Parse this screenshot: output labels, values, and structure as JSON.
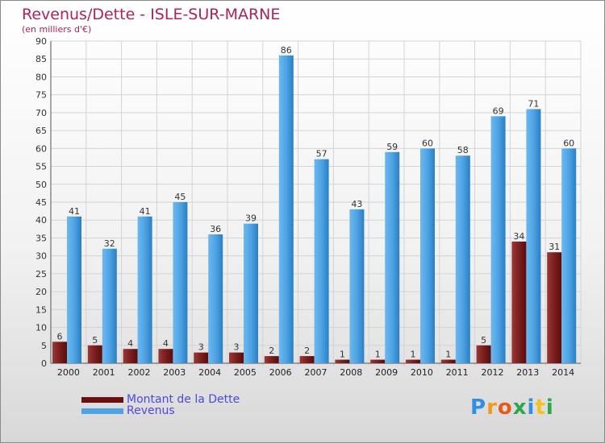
{
  "header": {
    "title": "Revenus/Dette - ISLE-SUR-MARNE",
    "subtitle": "(en milliers d'€)"
  },
  "chart_data": {
    "type": "bar",
    "categories": [
      "2000",
      "2001",
      "2002",
      "2003",
      "2004",
      "2005",
      "2006",
      "2007",
      "2008",
      "2009",
      "2010",
      "2011",
      "2012",
      "2013",
      "2014"
    ],
    "series": [
      {
        "name": "Montant de la Dette",
        "values": [
          6,
          5,
          4,
          4,
          3,
          3,
          2,
          2,
          1,
          1,
          1,
          1,
          5,
          34,
          31
        ],
        "color": "#7a1e1e"
      },
      {
        "name": "Revenus",
        "values": [
          41,
          32,
          41,
          45,
          36,
          39,
          86,
          57,
          43,
          59,
          60,
          58,
          69,
          71,
          60
        ],
        "color": "#4ea3e3"
      }
    ],
    "ylim": [
      0,
      90
    ],
    "yticks": [
      0,
      5,
      10,
      15,
      20,
      25,
      30,
      35,
      40,
      45,
      50,
      55,
      60,
      65,
      70,
      75,
      80,
      85,
      90
    ],
    "grid": true,
    "legend_position": "bottom-left"
  },
  "legend": {
    "items": [
      {
        "label": "Montant de la Dette",
        "color": "#6a1010"
      },
      {
        "label": "Revenus",
        "color": "#4ea3e3"
      }
    ]
  },
  "logo": {
    "letters": [
      "P",
      "r",
      "o",
      "x",
      "i",
      "t",
      "i"
    ],
    "colors": [
      "#2f8fe0",
      "#f39a1e",
      "#e85a1a",
      "#2aa84a",
      "#2f8fe0",
      "#f3c21e",
      "#2aa84a"
    ]
  }
}
